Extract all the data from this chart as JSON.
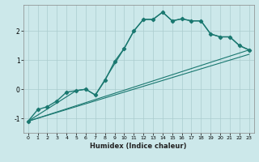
{
  "xlabel": "Humidex (Indice chaleur)",
  "bg_color": "#cce8ea",
  "grid_color": "#aaccce",
  "line_color": "#1a7870",
  "xlim": [
    -0.5,
    23.5
  ],
  "ylim": [
    -1.5,
    2.9
  ],
  "yticks": [
    -1,
    0,
    1,
    2
  ],
  "xticks": [
    0,
    1,
    2,
    3,
    4,
    5,
    6,
    7,
    8,
    9,
    10,
    11,
    12,
    13,
    14,
    15,
    16,
    17,
    18,
    19,
    20,
    21,
    22,
    23
  ],
  "line1_x": [
    0,
    1,
    2,
    3,
    4,
    5,
    6,
    7,
    8,
    9,
    10,
    11,
    12,
    13,
    14,
    15,
    16,
    17,
    18,
    19,
    20,
    21,
    22,
    23
  ],
  "line1_y": [
    -1.1,
    -0.7,
    -0.6,
    -0.4,
    -0.1,
    -0.05,
    0.0,
    -0.2,
    0.3,
    0.95,
    1.4,
    2.0,
    2.4,
    2.4,
    2.65,
    2.35,
    2.42,
    2.35,
    2.35,
    1.9,
    1.8,
    1.8,
    1.5,
    1.35
  ],
  "line2_x": [
    0,
    5,
    6,
    7,
    10,
    11,
    12,
    13,
    14,
    15,
    16,
    17,
    18,
    19,
    20,
    21,
    22,
    23
  ],
  "line2_y": [
    -1.1,
    -0.05,
    0.0,
    -0.2,
    1.4,
    2.0,
    2.4,
    2.4,
    2.65,
    2.35,
    2.42,
    2.35,
    2.35,
    1.9,
    1.8,
    1.8,
    1.5,
    1.35
  ],
  "line3_x": [
    0,
    23
  ],
  "line3_y": [
    -1.1,
    1.35
  ],
  "line4_x": [
    0,
    23
  ],
  "line4_y": [
    -1.1,
    1.2
  ]
}
